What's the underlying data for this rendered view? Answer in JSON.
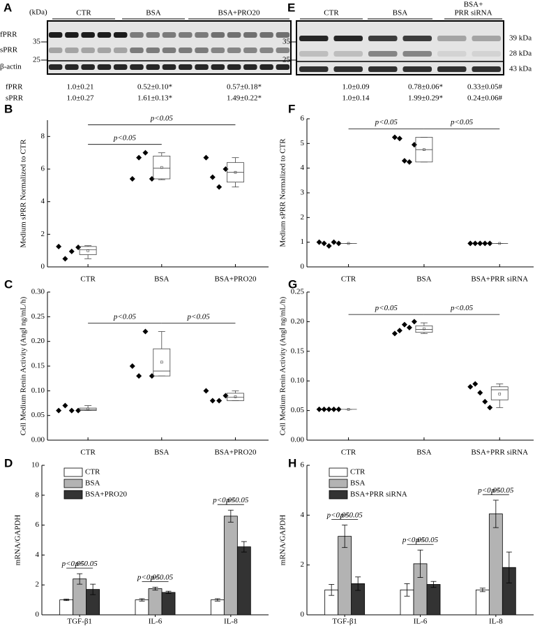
{
  "blots": [
    {
      "label": "A",
      "unit": "(kDa)",
      "groups": [
        [
          "CTR"
        ],
        [
          "BSA"
        ],
        [
          "BSA+PRO20"
        ]
      ],
      "bands": [
        "fPRR",
        "sPRR",
        "β-actin"
      ],
      "markers": [
        "35",
        "25"
      ],
      "quant": [
        {
          "name": "fPRR",
          "values": [
            "1.0±0.21",
            "0.52±0.10*",
            "0.57±0.18*"
          ]
        },
        {
          "name": "sPRR",
          "values": [
            "1.0±0.27",
            "1.61±0.13*",
            "1.49±0.22*"
          ]
        }
      ]
    },
    {
      "label": "E",
      "groups": [
        [
          "CTR"
        ],
        [
          "BSA"
        ],
        [
          "BSA+",
          "PRR siRNA"
        ]
      ],
      "markers": [
        "35",
        "25"
      ],
      "sizes": [
        "39 kDa",
        "28 kDa",
        "43 kDa"
      ],
      "quant": [
        {
          "values": [
            "1.0±0.09",
            "0.78±0.06*",
            "0.33±0.05#"
          ]
        },
        {
          "values": [
            "1.0±0.14",
            "1.99±0.29*",
            "0.24±0.06#"
          ]
        }
      ]
    }
  ],
  "chart_data": [
    {
      "type": "box",
      "label": "B",
      "ylabel": "Medium sPRR Normalized to CTR",
      "categories": [
        "CTR",
        "BSA",
        "BSA+PRO20"
      ],
      "ylim": [
        0,
        9
      ],
      "yticks": [
        0,
        2,
        4,
        6,
        8
      ],
      "points": [
        [
          1.25,
          0.5,
          0.95,
          1.2
        ],
        [
          5.4,
          6.7,
          7.0,
          5.4
        ],
        [
          6.7,
          5.5,
          4.9,
          6.0
        ]
      ],
      "boxes": [
        {
          "low": 0.5,
          "q1": 0.75,
          "median": 1.05,
          "q3": 1.25,
          "high": 1.3,
          "mean": 1.0
        },
        {
          "low": 5.35,
          "q1": 5.4,
          "median": 6.05,
          "q3": 6.8,
          "high": 7.0,
          "mean": 6.1
        },
        {
          "low": 4.9,
          "q1": 5.2,
          "median": 5.8,
          "q3": 6.4,
          "high": 6.7,
          "mean": 5.8
        }
      ],
      "comparisons": [
        {
          "between": [
            0,
            1
          ],
          "label": "p<0.05"
        },
        {
          "between": [
            0,
            2
          ],
          "label": "p<0.05"
        }
      ]
    },
    {
      "type": "box",
      "label": "F",
      "ylabel": "Medium sPRR Normalized to CTR",
      "categories": [
        "CTR",
        "BSA",
        "BSA+PRR siRNA"
      ],
      "ylim": [
        0,
        6
      ],
      "yticks": [
        0,
        1,
        2,
        3,
        4,
        5,
        6
      ],
      "points": [
        [
          1.0,
          0.95,
          0.85,
          1.0,
          0.95
        ],
        [
          5.25,
          5.2,
          4.3,
          4.25,
          4.95
        ],
        [
          0.95,
          0.95,
          0.95,
          0.95,
          0.95
        ]
      ],
      "boxes": [
        {
          "low": 0.95,
          "q1": 0.95,
          "median": 0.95,
          "q3": 0.95,
          "high": 0.95,
          "mean": 0.95
        },
        {
          "low": 4.25,
          "q1": 4.25,
          "median": 4.75,
          "q3": 5.25,
          "high": 5.25,
          "mean": 4.75
        },
        {
          "low": 0.95,
          "q1": 0.95,
          "median": 0.95,
          "q3": 0.95,
          "high": 0.95,
          "mean": 0.95
        }
      ],
      "comparisons": [
        {
          "between": [
            0,
            1
          ],
          "label": "p<0.05"
        },
        {
          "between": [
            1,
            2
          ],
          "label": "p<0.05"
        }
      ]
    },
    {
      "type": "box",
      "label": "C",
      "ylabel": "Cell Medium Renin Activity (AngⅠ ng/mL/h)",
      "categories": [
        "CTR",
        "BSA",
        "BSA+PRO20"
      ],
      "ylim": [
        0,
        0.3
      ],
      "yticks": [
        {
          "value": 0,
          "label": "0.00"
        },
        {
          "value": 0.05,
          "label": "0.05"
        },
        {
          "value": 0.1,
          "label": "0.10"
        },
        {
          "value": 0.15,
          "label": "0.15"
        },
        {
          "value": 0.2,
          "label": "0.20"
        },
        {
          "value": 0.25,
          "label": "0.25"
        },
        {
          "value": 0.3,
          "label": "0.30"
        }
      ],
      "points": [
        [
          0.06,
          0.07,
          0.06,
          0.06
        ],
        [
          0.15,
          0.13,
          0.22,
          0.13
        ],
        [
          0.1,
          0.08,
          0.08,
          0.09
        ]
      ],
      "boxes": [
        {
          "low": 0.06,
          "q1": 0.06,
          "median": 0.062,
          "q3": 0.065,
          "high": 0.07,
          "mean": 0.063
        },
        {
          "low": 0.13,
          "q1": 0.13,
          "median": 0.14,
          "q3": 0.185,
          "high": 0.22,
          "mean": 0.158
        },
        {
          "low": 0.08,
          "q1": 0.08,
          "median": 0.087,
          "q3": 0.095,
          "high": 0.1,
          "mean": 0.088
        }
      ],
      "comparisons": [
        {
          "between": [
            0,
            1
          ],
          "label": "p<0.05"
        },
        {
          "between": [
            1,
            2
          ],
          "label": "p<0.05"
        }
      ]
    },
    {
      "type": "box",
      "label": "G",
      "ylabel": "Cell Medium Renin Activity (AngⅠ ng/mL/h)",
      "categories": [
        "CTR",
        "BSA",
        "BSA+PRR siRNA"
      ],
      "ylim": [
        0,
        0.25
      ],
      "yticks": [
        {
          "value": 0,
          "label": "0.00"
        },
        {
          "value": 0.05,
          "label": "0.05"
        },
        {
          "value": 0.1,
          "label": "0.10"
        },
        {
          "value": 0.15,
          "label": "0.15"
        },
        {
          "value": 0.2,
          "label": "0.20"
        },
        {
          "value": 0.25,
          "label": "0.25"
        }
      ],
      "points": [
        [
          0.052,
          0.052,
          0.052,
          0.052,
          0.052
        ],
        [
          0.18,
          0.185,
          0.195,
          0.19,
          0.2
        ],
        [
          0.09,
          0.095,
          0.08,
          0.065,
          0.055
        ]
      ],
      "boxes": [
        {
          "low": 0.052,
          "q1": 0.052,
          "median": 0.052,
          "q3": 0.052,
          "high": 0.052,
          "mean": 0.052
        },
        {
          "low": 0.18,
          "q1": 0.182,
          "median": 0.187,
          "q3": 0.193,
          "high": 0.198,
          "mean": 0.188
        },
        {
          "low": 0.055,
          "q1": 0.068,
          "median": 0.085,
          "q3": 0.09,
          "high": 0.095,
          "mean": 0.078
        }
      ],
      "comparisons": [
        {
          "between": [
            0,
            1
          ],
          "label": "p<0.05"
        },
        {
          "between": [
            1,
            2
          ],
          "label": "p<0.05"
        }
      ]
    },
    {
      "type": "bar",
      "label": "D",
      "ylabel": "mRNA/GAPDH",
      "categories": [
        "TGF-β1",
        "IL-6",
        "IL-8"
      ],
      "ylim": [
        0,
        10
      ],
      "yticks": [
        0,
        2,
        4,
        6,
        8,
        10
      ],
      "legend": "upper left",
      "series": [
        {
          "name": "CTR",
          "color": "#ffffff",
          "values": [
            1.0,
            1.0,
            1.0
          ],
          "errors": [
            0.05,
            0.08,
            0.08
          ]
        },
        {
          "name": "BSA",
          "color": "#b3b3b3",
          "values": [
            2.4,
            1.75,
            6.6
          ],
          "errors": [
            0.35,
            0.1,
            0.4
          ]
        },
        {
          "name": "BSA+PRO20",
          "color": "#333333",
          "values": [
            1.7,
            1.5,
            4.55
          ],
          "errors": [
            0.35,
            0.08,
            0.35
          ]
        }
      ],
      "comparisons": [
        {
          "category": 0,
          "between": [
            0,
            1
          ],
          "label": "p<0.05"
        },
        {
          "category": 0,
          "between": [
            1,
            2
          ],
          "label": "p<0.05"
        },
        {
          "category": 1,
          "between": [
            0,
            1
          ],
          "label": "p<0.05"
        },
        {
          "category": 1,
          "between": [
            1,
            2
          ],
          "label": "p<0.05"
        },
        {
          "category": 2,
          "between": [
            0,
            1
          ],
          "label": "p<0.05"
        },
        {
          "category": 2,
          "between": [
            1,
            2
          ],
          "label": "p<0.05"
        }
      ]
    },
    {
      "type": "bar",
      "label": "H",
      "ylabel": "mRNA/GAPDH",
      "categories": [
        "TGF-β1",
        "IL-6",
        "IL-8"
      ],
      "ylim": [
        0,
        6
      ],
      "yticks": [
        0,
        2,
        4,
        6
      ],
      "legend": "upper left",
      "series": [
        {
          "name": "CTR",
          "color": "#ffffff",
          "values": [
            1.0,
            1.0,
            1.0
          ],
          "errors": [
            0.22,
            0.25,
            0.07
          ]
        },
        {
          "name": "BSA",
          "color": "#b3b3b3",
          "values": [
            3.15,
            2.05,
            4.05
          ],
          "errors": [
            0.45,
            0.55,
            0.55
          ]
        },
        {
          "name": "BSA+PRR siRNA",
          "color": "#333333",
          "values": [
            1.25,
            1.22,
            1.9
          ],
          "errors": [
            0.27,
            0.12,
            0.62
          ]
        }
      ],
      "comparisons": [
        {
          "category": 0,
          "between": [
            0,
            1
          ],
          "label": "p<0.05"
        },
        {
          "category": 0,
          "between": [
            1,
            2
          ],
          "label": "p<0.05"
        },
        {
          "category": 1,
          "between": [
            0,
            1
          ],
          "label": "p<0.05"
        },
        {
          "category": 1,
          "between": [
            1,
            2
          ],
          "label": "p<0.05"
        },
        {
          "category": 2,
          "between": [
            0,
            1
          ],
          "label": "p<0.05"
        },
        {
          "category": 2,
          "between": [
            1,
            2
          ],
          "label": "p<0.05"
        }
      ]
    }
  ]
}
